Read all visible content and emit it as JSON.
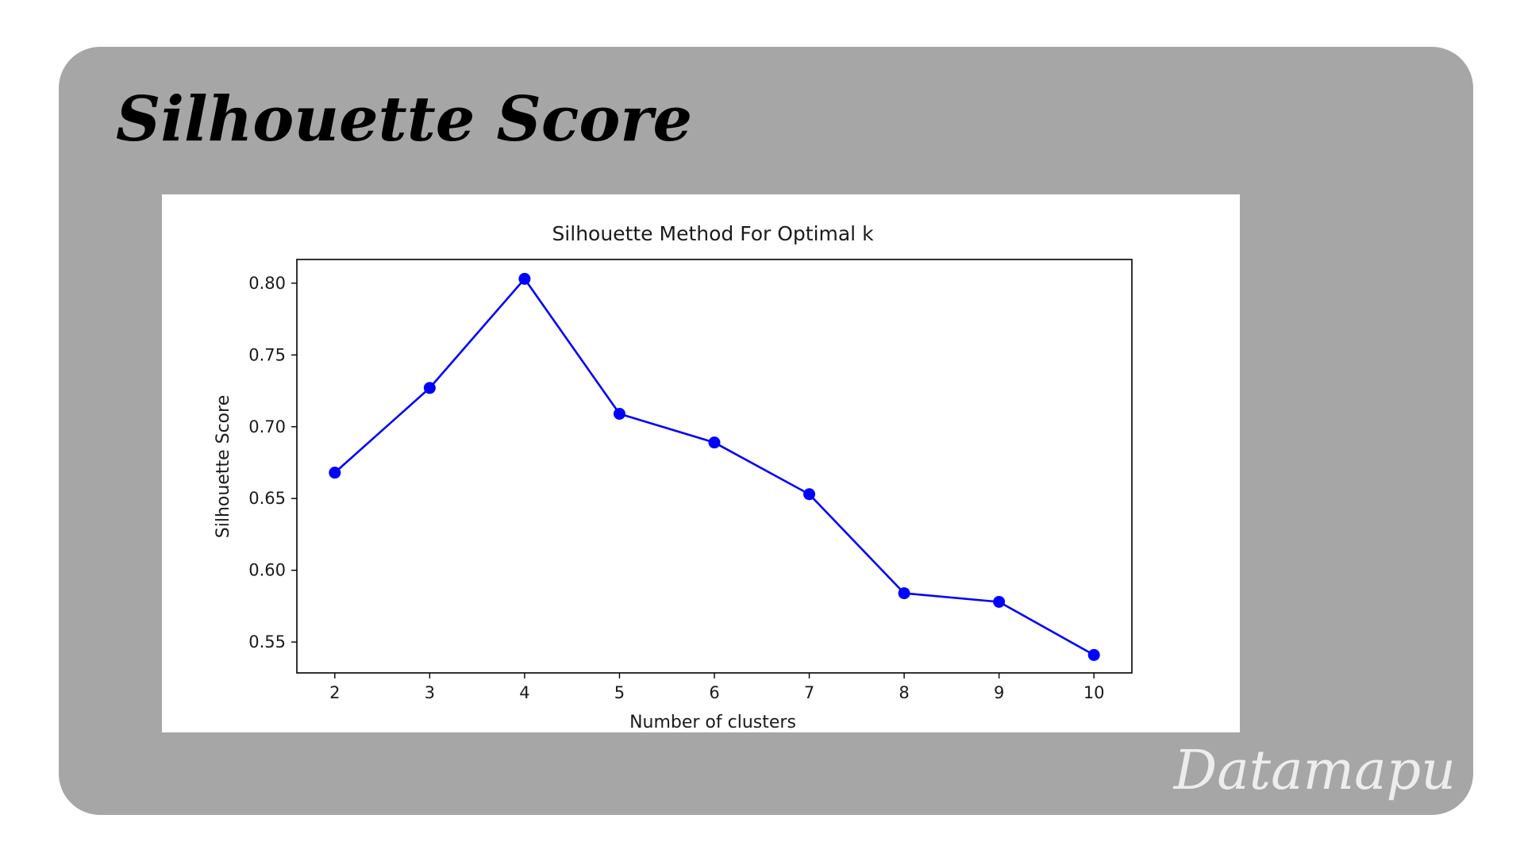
{
  "header": {
    "title": "Silhouette Score"
  },
  "watermark": {
    "text": "Datamapu"
  },
  "colors": {
    "card_background": "#a6a6a6",
    "series": "#0000ff"
  },
  "chart_data": {
    "type": "line",
    "title": "Silhouette Method For Optimal k",
    "xlabel": "Number of clusters",
    "ylabel": "Silhouette Score",
    "x": [
      2,
      3,
      4,
      5,
      6,
      7,
      8,
      9,
      10
    ],
    "series": [
      {
        "values": [
          0.668,
          0.727,
          0.803,
          0.709,
          0.689,
          0.653,
          0.584,
          0.578,
          0.541
        ],
        "marker": "circle"
      }
    ],
    "xticks": [
      "2",
      "3",
      "4",
      "5",
      "6",
      "7",
      "8",
      "9",
      "10"
    ],
    "yticks": [
      "0.55",
      "0.60",
      "0.65",
      "0.70",
      "0.75",
      "0.80"
    ],
    "xlim": [
      1.6,
      10.4
    ],
    "ylim": [
      0.5285,
      0.8165
    ],
    "grid": false,
    "legend": "none"
  }
}
